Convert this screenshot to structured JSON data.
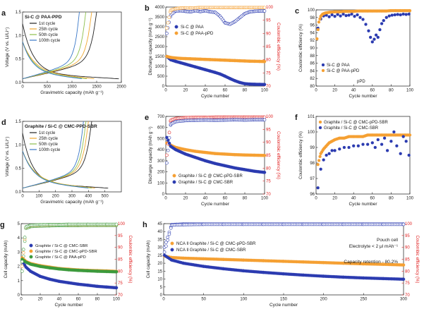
{
  "figure": {
    "colors": {
      "black": "#1a1a1a",
      "blue": "#2b3bb0",
      "orange": "#f5a033",
      "green": "#3c9a3c",
      "red": "#e02020",
      "cycle1": "#222222",
      "cycle25": "#f0a830",
      "cycle50": "#8dbf4d",
      "cycle100": "#3a78c8"
    }
  },
  "chart_data": [
    {
      "id": "a",
      "type": "line",
      "panel_label": "a",
      "title": "Si-C @ PAA-PPD",
      "xlabel": "Gravimetric capacity (mAh g⁻¹)",
      "ylabel": "Voltage (V vs. Li/Li⁺)",
      "xlim": [
        0,
        2000
      ],
      "ylim": [
        0,
        1.5
      ],
      "xticks": [
        0,
        500,
        1000,
        1500,
        2000
      ],
      "yticks": [
        0.0,
        0.5,
        1.0,
        1.5
      ],
      "legend": [
        "1st cycle",
        "25th cycle",
        "50th cycle",
        "100th cycle"
      ],
      "discharge_end": [
        1950,
        1450,
        1300,
        1200
      ],
      "charge_end": [
        1500,
        1400,
        1280,
        1150
      ]
    },
    {
      "id": "b",
      "type": "scatter",
      "panel_label": "b",
      "xlabel": "Cycle number",
      "ylabel": "Discharge capacity (mAh g⁻¹)",
      "y2label": "Coulombic efficiency (%)",
      "xlim": [
        0,
        100
      ],
      "ylim": [
        0,
        4000
      ],
      "y2lim": [
        70,
        100
      ],
      "xticks": [
        0,
        20,
        40,
        60,
        80,
        100
      ],
      "yticks": [
        0,
        500,
        1000,
        1500,
        2000,
        2500,
        3000,
        3500,
        4000
      ],
      "y2ticks": [
        70,
        75,
        80,
        85,
        90,
        95,
        100
      ],
      "legend": [
        "Si-C @ PAA",
        "Si-C @ PAA-pPD"
      ],
      "series": [
        {
          "name": "Si-C @ PAA",
          "x": [
            1,
            5,
            10,
            15,
            20,
            25,
            30,
            35,
            40,
            45,
            50,
            55,
            60,
            65,
            70,
            75,
            80,
            85,
            90,
            95,
            100
          ],
          "capacity": [
            1500,
            1330,
            1250,
            1180,
            1110,
            1040,
            970,
            900,
            830,
            760,
            690,
            610,
            500,
            380,
            270,
            180,
            120,
            100,
            90,
            85,
            80
          ],
          "ce": [
            90,
            97,
            98.5,
            98.6,
            98.4,
            98.2,
            98.6,
            98.3,
            98.6,
            98.2,
            98.0,
            96.5,
            94.0,
            93.5,
            94.5,
            96.0,
            97.5,
            98.2,
            98.4,
            98.5,
            98.5
          ]
        },
        {
          "name": "Si-C @ PAA-pPD",
          "x": [
            1,
            5,
            10,
            15,
            20,
            25,
            30,
            35,
            40,
            45,
            50,
            55,
            60,
            65,
            70,
            75,
            80,
            85,
            90,
            95,
            100
          ],
          "capacity": [
            1500,
            1450,
            1420,
            1400,
            1390,
            1380,
            1370,
            1360,
            1350,
            1340,
            1330,
            1320,
            1310,
            1300,
            1290,
            1280,
            1270,
            1260,
            1255,
            1250,
            1240
          ],
          "ce": [
            92,
            98.8,
            99.4,
            99.6,
            99.7,
            99.7,
            99.7,
            99.8,
            99.8,
            99.8,
            99.8,
            99.8,
            99.8,
            99.8,
            99.8,
            99.8,
            99.8,
            99.8,
            99.8,
            99.8,
            99.8
          ]
        }
      ]
    },
    {
      "id": "c",
      "type": "scatter",
      "panel_label": "c",
      "xlabel": "Cycle number",
      "ylabel": "Coulombic efficiency (%)",
      "xlim": [
        0,
        100
      ],
      "ylim": [
        80,
        100
      ],
      "xticks": [
        0,
        20,
        40,
        60,
        80,
        100
      ],
      "yticks": [
        80,
        82,
        84,
        86,
        88,
        90,
        92,
        94,
        96,
        98,
        100
      ],
      "legend": [
        "Si-C @ PAA",
        "Si-C @ PAA-pPD"
      ],
      "annotation": "pPD",
      "series": [
        {
          "name": "Si-C @ PAA",
          "x": [
            2,
            5,
            8,
            11,
            14,
            17,
            20,
            23,
            26,
            29,
            32,
            35,
            38,
            41,
            44,
            47,
            50,
            53,
            56,
            58,
            60,
            62,
            64,
            66,
            68,
            70,
            72,
            75,
            78,
            81,
            84,
            87,
            90,
            93,
            96,
            99
          ],
          "y": [
            95.2,
            97.6,
            98.4,
            98.6,
            98.2,
            98.7,
            98.3,
            98.8,
            98.4,
            98.9,
            98.5,
            98.6,
            98.9,
            98.3,
            98.7,
            98.0,
            97.5,
            96.2,
            94.5,
            92.8,
            91.6,
            92.3,
            93.4,
            92.8,
            94.8,
            96.4,
            97.2,
            98.0,
            98.4,
            98.6,
            98.7,
            98.8,
            98.7,
            98.9,
            98.8,
            98.9
          ]
        },
        {
          "name": "Si-C @ PAA-pPD",
          "x": [
            1,
            3,
            5,
            7,
            10,
            15,
            20,
            25,
            30,
            35,
            40,
            45,
            50,
            55,
            60,
            65,
            70,
            75,
            80,
            85,
            90,
            95,
            100
          ],
          "y": [
            92.4,
            96.8,
            98.3,
            98.9,
            99.2,
            99.4,
            99.5,
            99.5,
            99.6,
            99.6,
            99.6,
            99.7,
            99.7,
            99.7,
            99.7,
            99.7,
            99.7,
            99.7,
            99.8,
            99.8,
            99.8,
            99.8,
            99.8
          ]
        }
      ]
    },
    {
      "id": "d",
      "type": "line",
      "panel_label": "d",
      "title": "Graphite / Si-C @ CMC-PPD-SBR",
      "xlabel": "Gravimetric capacity (mAh g⁻¹)",
      "ylabel": "Voltage (V vs. Li/Li⁺)",
      "xlim": [
        0,
        600
      ],
      "ylim": [
        0,
        1.5
      ],
      "xticks": [
        0,
        100,
        200,
        300,
        400,
        500
      ],
      "yticks": [
        0.0,
        0.5,
        1.0,
        1.5
      ],
      "legend": [
        "1st cycle",
        "25th cycle",
        "50th cycle",
        "100th cycle"
      ],
      "discharge_end": [
        520,
        440,
        420,
        400
      ],
      "charge_end": [
        420,
        400,
        385,
        370
      ]
    },
    {
      "id": "e",
      "type": "scatter",
      "panel_label": "e",
      "xlabel": "Cycle number",
      "ylabel": "Discharge capacity (mAh g⁻¹)",
      "y2label": "Coulombic efficiency (%)",
      "xlim": [
        0,
        100
      ],
      "ylim": [
        0,
        700
      ],
      "y2lim": [
        70,
        100
      ],
      "xticks": [
        0,
        20,
        40,
        60,
        80,
        100
      ],
      "yticks": [
        0,
        100,
        200,
        300,
        400,
        500,
        600,
        700
      ],
      "y2ticks": [
        70,
        75,
        80,
        85,
        90,
        95,
        100
      ],
      "legend": [
        "Graphite / Si-C @ CMC-pPD-SBR",
        "Graphite / Si-C @ CMC-SBR"
      ],
      "series": [
        {
          "name": "Graphite / Si-C @ CMC-pPD-SBR",
          "x": [
            1,
            5,
            10,
            20,
            30,
            40,
            50,
            60,
            70,
            80,
            90,
            100
          ],
          "capacity": [
            460,
            440,
            420,
            400,
            385,
            375,
            365,
            360,
            355,
            352,
            350,
            348
          ],
          "ce": [
            85,
            98.5,
            99.2,
            99.5,
            99.6,
            99.6,
            99.7,
            99.7,
            99.7,
            99.7,
            99.7,
            99.7
          ]
        },
        {
          "name": "Graphite / Si-C @ CMC-SBR",
          "x": [
            1,
            5,
            10,
            20,
            30,
            40,
            50,
            60,
            70,
            80,
            90,
            100
          ],
          "capacity": [
            510,
            430,
            400,
            360,
            330,
            300,
            275,
            255,
            235,
            220,
            205,
            195
          ],
          "ce": [
            82,
            97,
            98.0,
            98.4,
            98.5,
            98.6,
            98.5,
            98.6,
            98.7,
            98.6,
            98.7,
            98.7
          ]
        }
      ]
    },
    {
      "id": "f",
      "type": "scatter",
      "panel_label": "f",
      "xlabel": "Cycle number",
      "ylabel": "Coulombic efficiency (%)",
      "xlim": [
        0,
        100
      ],
      "ylim": [
        96,
        101
      ],
      "xticks": [
        0,
        20,
        40,
        60,
        80,
        100
      ],
      "yticks": [
        96,
        97,
        98,
        99,
        100,
        101
      ],
      "legend": [
        "Graphite / Si-C @ CMC-pPD-SBR",
        "Graphite / Si-C @ CMC-SBR"
      ],
      "series": [
        {
          "name": "Graphite / Si-C @ CMC-pPD-SBR",
          "x": [
            2,
            5,
            8,
            11,
            14,
            17,
            20,
            25,
            30,
            35,
            40,
            45,
            50,
            55,
            60,
            65,
            70,
            75,
            80,
            85,
            90,
            95,
            100
          ],
          "y": [
            97.9,
            98.6,
            98.9,
            99.1,
            99.3,
            99.4,
            99.5,
            99.6,
            99.6,
            99.7,
            99.7,
            99.7,
            99.7,
            99.8,
            99.8,
            99.8,
            99.8,
            99.8,
            99.8,
            99.8,
            99.8,
            99.8,
            99.8
          ]
        },
        {
          "name": "Graphite / Si-C @ CMC-SBR",
          "x": [
            2,
            5,
            8,
            11,
            14,
            17,
            20,
            25,
            30,
            35,
            40,
            45,
            50,
            55,
            60,
            63,
            66,
            70,
            73,
            76,
            80,
            83,
            86,
            90,
            93,
            96,
            99
          ],
          "y": [
            96.4,
            97.6,
            98.2,
            98.5,
            98.6,
            98.8,
            98.8,
            98.9,
            99.0,
            99.0,
            99.1,
            99.1,
            99.2,
            99.2,
            99.3,
            99.0,
            99.5,
            99.2,
            99.6,
            98.8,
            99.4,
            100.0,
            99.1,
            98.6,
            99.7,
            99.4,
            98.5
          ]
        }
      ]
    },
    {
      "id": "g",
      "type": "scatter",
      "panel_label": "g",
      "xlabel": "Cycle number",
      "ylabel": "Cell capacity (mAh)",
      "y2label": "Coulombic efficiency (%)",
      "xlim": [
        0,
        100
      ],
      "ylim": [
        0,
        5
      ],
      "y2lim": [
        70,
        100
      ],
      "xticks": [
        0,
        20,
        40,
        60,
        80,
        100
      ],
      "yticks": [
        0,
        1,
        2,
        3,
        4,
        5
      ],
      "y2ticks": [
        70,
        75,
        80,
        85,
        90,
        95,
        100
      ],
      "legend": [
        "Graphite / Si-C @ CMC-SBR",
        "Graphite / Si-C @ CMC-pPD-SBR",
        "Graphite / Si-C @ PAA-pPD"
      ],
      "series": [
        {
          "name": "Graphite / Si-C @ CMC-SBR",
          "x": [
            1,
            5,
            10,
            20,
            30,
            40,
            50,
            60,
            70,
            80,
            90,
            100
          ],
          "capacity": [
            2.4,
            1.95,
            1.65,
            1.3,
            1.1,
            0.95,
            0.85,
            0.75,
            0.68,
            0.6,
            0.55,
            0.5
          ],
          "ce": [
            80,
            98,
            98.8,
            99.0,
            99.1,
            99.2,
            99.2,
            99.2,
            99.3,
            99.3,
            99.3,
            99.3
          ]
        },
        {
          "name": "Graphite / Si-C @ CMC-pPD-SBR",
          "x": [
            1,
            5,
            10,
            20,
            30,
            40,
            50,
            60,
            70,
            80,
            90,
            100
          ],
          "capacity": [
            2.6,
            2.35,
            2.2,
            2.05,
            1.95,
            1.85,
            1.8,
            1.75,
            1.72,
            1.7,
            1.68,
            1.65
          ],
          "ce": [
            82,
            98.5,
            99.2,
            99.4,
            99.5,
            99.6,
            99.6,
            99.6,
            99.6,
            99.6,
            99.6,
            99.6
          ]
        },
        {
          "name": "Graphite / Si-C @ PAA-pPD",
          "x": [
            1,
            5,
            10,
            20,
            30,
            40,
            50,
            60,
            70,
            80,
            90,
            100
          ],
          "capacity": [
            2.5,
            2.3,
            2.15,
            2.0,
            1.9,
            1.82,
            1.76,
            1.72,
            1.69,
            1.66,
            1.64,
            1.62
          ],
          "ce": [
            84,
            98.6,
            99.3,
            99.5,
            99.6,
            99.6,
            99.7,
            99.7,
            99.7,
            99.7,
            99.7,
            99.7
          ]
        }
      ]
    },
    {
      "id": "h",
      "type": "scatter",
      "panel_label": "h",
      "xlabel": "Cycle number",
      "ylabel": "Cell capacity (mAh)",
      "y2label": "Coulombic efficiency (%)",
      "xlim": [
        0,
        300
      ],
      "ylim": [
        0,
        45
      ],
      "y2lim": [
        70,
        100
      ],
      "xticks": [
        0,
        50,
        100,
        150,
        200,
        250,
        300
      ],
      "yticks": [
        0,
        5,
        10,
        15,
        20,
        25,
        30,
        35,
        40,
        45
      ],
      "y2ticks": [
        70,
        75,
        80,
        85,
        90,
        95,
        100
      ],
      "legend": [
        "NCA ll Graphite / Si-C @ CMC-pPD-SBR",
        "NCA ll Graphite / Si-C @ CMC-SBR"
      ],
      "annotations": [
        "Pouch cell",
        "Electrolyte < 2 μl mAh⁻¹",
        "Capacity retention - 80.2%"
      ],
      "series": [
        {
          "name": "NCA ll Graphite / Si-C @ CMC-pPD-SBR",
          "x": [
            1,
            10,
            25,
            50,
            75,
            100,
            125,
            150,
            175,
            200,
            225,
            250,
            275,
            300
          ],
          "capacity": [
            24.5,
            23.6,
            23.2,
            22.8,
            22.4,
            22.0,
            21.6,
            21.2,
            20.8,
            20.4,
            20.0,
            19.6,
            19.3,
            18.9
          ],
          "ce": [
            90,
            99.6,
            99.8,
            99.8,
            99.8,
            99.8,
            99.8,
            99.8,
            99.8,
            99.8,
            99.8,
            99.8,
            99.8,
            99.8
          ]
        },
        {
          "name": "NCA ll Graphite / Si-C @ CMC-SBR",
          "x": [
            1,
            10,
            25,
            50,
            75,
            100,
            125,
            150,
            175,
            200,
            225,
            250,
            275,
            300
          ],
          "capacity": [
            25,
            22,
            20,
            18,
            16.5,
            15.2,
            14.2,
            13.3,
            12.5,
            11.8,
            11.2,
            10.7,
            10.3,
            9.9
          ],
          "ce": [
            88,
            99.4,
            99.6,
            99.7,
            99.7,
            99.7,
            99.7,
            99.7,
            99.7,
            99.7,
            99.7,
            99.7,
            99.7,
            99.7
          ]
        }
      ]
    }
  ]
}
